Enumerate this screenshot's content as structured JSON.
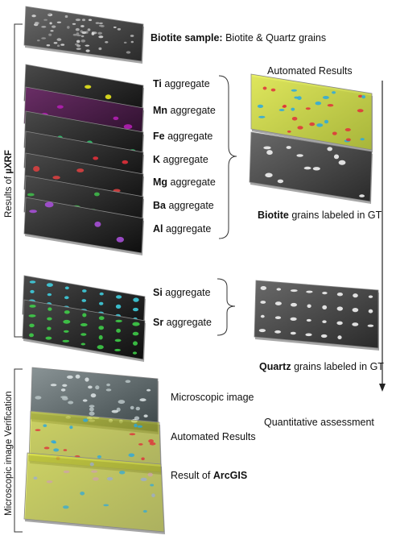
{
  "sections": {
    "uxrf": {
      "label_prefix": "Results of ",
      "label_bold": "µXRF"
    },
    "microscopic": {
      "label": "Microscopic image Verification"
    }
  },
  "sample": {
    "bold": "Biotite sample:",
    "rest": " Biotite & Quartz grains"
  },
  "aggregates": [
    {
      "element": "Ti",
      "suffix": " aggregate",
      "color": "#e6e61e"
    },
    {
      "element": "Mn",
      "suffix": " aggregate",
      "color": "#b21fb2"
    },
    {
      "element": "Fe",
      "suffix": " aggregate",
      "color": "#2fbf6a"
    },
    {
      "element": "K",
      "suffix": " aggregate",
      "color": "#e0303a"
    },
    {
      "element": "Mg",
      "suffix": " aggregate",
      "color": "#d84040"
    },
    {
      "element": "Ba",
      "suffix": " aggregate",
      "color": "#3fb84a"
    },
    {
      "element": "Al",
      "suffix": " aggregate",
      "color": "#a64fd6"
    }
  ],
  "quartz_aggregates": [
    {
      "element": "Si",
      "suffix": " aggregate",
      "color": "#3fd6e6"
    },
    {
      "element": "Sr",
      "suffix": " aggregate",
      "color": "#3fd64a"
    }
  ],
  "right": {
    "automated_results": "Automated Results",
    "biotite_bold": "Biotite",
    "biotite_rest": " grains labeled in GT",
    "quartz_bold": "Quartz",
    "quartz_rest": " grains labeled in GT",
    "quant": "Quantitative assessment"
  },
  "bottom": {
    "microscopic_image": "Microscopic image",
    "automated_results": "Automated Results",
    "arcgis_prefix": "Result of ",
    "arcgis_bold": "ArcGIS"
  },
  "colors": {
    "yellow_layer": "#d8e23a",
    "red_grain": "#e0303a",
    "blue_grain": "#2aa8e0"
  }
}
